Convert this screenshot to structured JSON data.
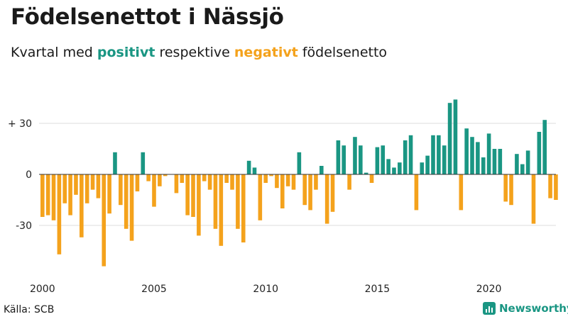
{
  "title": "Födelsenettot i Nässjö",
  "subtitle": {
    "prefix": "Kvartal med ",
    "positive_word": "positivt",
    "middle": " respektive ",
    "negative_word": "negativt",
    "suffix": " födelsenetto"
  },
  "source": "Källa: SCB",
  "brand": "Newsworthy",
  "colors": {
    "positive": "#1a9683",
    "negative": "#f4a21c",
    "grid": "#dddddd",
    "axis": "#333333"
  },
  "chart_data": {
    "type": "bar",
    "title": "Födelsenettot i Nässjö",
    "x_start": "2000Q1",
    "xticks": [
      "2000",
      "2005",
      "2010",
      "2015",
      "2020"
    ],
    "yticks": [
      {
        "value": 30,
        "label": "+ 30"
      },
      {
        "value": 0,
        "label": "0"
      },
      {
        "value": -30,
        "label": "-30"
      }
    ],
    "ylim": [
      -55,
      45
    ],
    "grid": true,
    "values": [
      -25,
      -24,
      -27,
      -47,
      -17,
      -24,
      -12,
      -37,
      -17,
      -9,
      -14,
      -54,
      -23,
      13,
      -18,
      -32,
      -39,
      -10,
      13,
      -4,
      -19,
      -7,
      -1,
      0,
      -11,
      -5,
      -24,
      -25,
      -36,
      -4,
      -9,
      -32,
      -42,
      -5,
      -9,
      -32,
      -40,
      8,
      4,
      -27,
      -5,
      -1,
      -8,
      -20,
      -7,
      -9,
      13,
      -18,
      -21,
      -9,
      5,
      -29,
      -22,
      20,
      17,
      -9,
      22,
      17,
      1,
      -5,
      16,
      17,
      9,
      4,
      7,
      20,
      23,
      -21,
      7,
      11,
      23,
      23,
      17,
      42,
      44,
      -21,
      27,
      22,
      19,
      10,
      24,
      15,
      15,
      -16,
      -18,
      12,
      6,
      14,
      -29,
      25,
      32,
      -14,
      -15
    ]
  }
}
